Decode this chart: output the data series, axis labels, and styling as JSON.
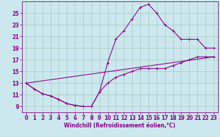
{
  "xlabel": "Windchill (Refroidissement éolien,°C)",
  "background_color": "#cce8ee",
  "grid_color": "#a0c8c0",
  "line_color": "#880088",
  "spine_color": "#880088",
  "xlim": [
    -0.5,
    23.5
  ],
  "ylim": [
    8.0,
    27.0
  ],
  "xticks": [
    0,
    1,
    2,
    3,
    4,
    5,
    6,
    7,
    8,
    9,
    10,
    11,
    12,
    13,
    14,
    15,
    16,
    17,
    18,
    19,
    20,
    21,
    22,
    23
  ],
  "yticks": [
    9,
    11,
    13,
    15,
    17,
    19,
    21,
    23,
    25
  ],
  "curve1_x": [
    0,
    1,
    2,
    3,
    4,
    5,
    6,
    7,
    8,
    9,
    10,
    11,
    12,
    13,
    14,
    15,
    16,
    17,
    18,
    19,
    20,
    21,
    22,
    23
  ],
  "curve1_y": [
    13,
    12,
    11.2,
    10.8,
    10.2,
    9.5,
    9.2,
    9.0,
    9.0,
    11.5,
    16.5,
    20.5,
    22.0,
    24.0,
    26.0,
    26.5,
    25.0,
    23.0,
    22.0,
    20.5,
    20.5,
    20.5,
    19.0,
    19.0
  ],
  "curve2_x": [
    0,
    1,
    2,
    3,
    4,
    5,
    6,
    7,
    8,
    9,
    10,
    11,
    12,
    13,
    14,
    15,
    16,
    17,
    18,
    19,
    20,
    21,
    22,
    23
  ],
  "curve2_y": [
    13,
    12,
    11.2,
    10.8,
    10.2,
    9.5,
    9.2,
    9.0,
    9.0,
    11.5,
    13.0,
    14.0,
    14.5,
    15.0,
    15.5,
    15.5,
    15.5,
    15.5,
    16.0,
    16.5,
    17.0,
    17.5,
    17.5,
    17.5
  ],
  "line3_x": [
    0,
    23
  ],
  "line3_y": [
    13.0,
    17.5
  ],
  "tick_fontsize": 5.5,
  "label_fontsize": 5.5
}
